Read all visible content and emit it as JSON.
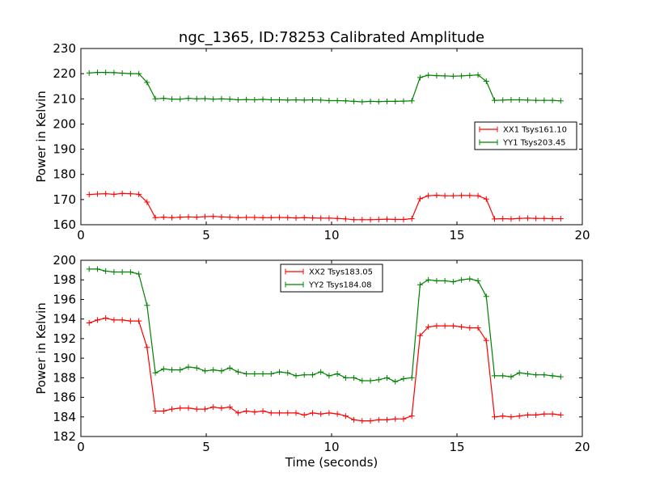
{
  "title": "ngc_1365, ID:78253 Calibrated Amplitude",
  "colors": {
    "series1": "#ff0000",
    "series2": "#008000",
    "axes": "#000000",
    "background": "#ffffff"
  },
  "chart_data": [
    {
      "type": "line",
      "title": "ngc_1365, ID:78253 Calibrated Amplitude",
      "xlabel": "",
      "ylabel": "Power in Kelvin",
      "xlim": [
        0,
        20
      ],
      "ylim": [
        160,
        230
      ],
      "xticks": [
        0,
        5,
        10,
        15,
        20
      ],
      "yticks": [
        160,
        170,
        180,
        190,
        200,
        210,
        220,
        230
      ],
      "grid": false,
      "legend": "right",
      "x": [
        0.33,
        0.66,
        0.99,
        1.32,
        1.65,
        1.98,
        2.31,
        2.64,
        2.97,
        3.3,
        3.63,
        3.96,
        4.29,
        4.62,
        4.95,
        5.28,
        5.61,
        5.94,
        6.27,
        6.6,
        6.93,
        7.26,
        7.59,
        7.92,
        8.25,
        8.58,
        8.91,
        9.24,
        9.57,
        9.9,
        10.23,
        10.56,
        10.89,
        11.22,
        11.55,
        11.88,
        12.21,
        12.54,
        12.87,
        13.2,
        13.53,
        13.86,
        14.19,
        14.52,
        14.85,
        15.18,
        15.51,
        15.84,
        16.17,
        16.5,
        16.83,
        17.16,
        17.49,
        17.82,
        18.15,
        18.48,
        18.81,
        19.14
      ],
      "series": [
        {
          "name": "XX1 Tsys161.10",
          "color": "#ff0000",
          "values": [
            172.0,
            172.2,
            172.3,
            172.1,
            172.4,
            172.3,
            172.1,
            169.0,
            162.8,
            163.0,
            162.8,
            163.0,
            163.1,
            163.0,
            163.2,
            163.3,
            163.1,
            163.0,
            162.8,
            162.9,
            162.9,
            162.8,
            162.8,
            162.9,
            162.8,
            162.7,
            162.8,
            162.7,
            162.6,
            162.6,
            162.5,
            162.3,
            162.0,
            162.0,
            162.0,
            162.1,
            162.2,
            162.1,
            162.1,
            162.4,
            170.3,
            171.5,
            171.7,
            171.5,
            171.5,
            171.6,
            171.6,
            171.5,
            170.2,
            162.3,
            162.4,
            162.3,
            162.5,
            162.6,
            162.5,
            162.5,
            162.4,
            162.4
          ]
        },
        {
          "name": "YY1 Tsys203.45",
          "color": "#008000",
          "values": [
            220.3,
            220.5,
            220.5,
            220.4,
            220.2,
            220.0,
            220.0,
            216.5,
            210.0,
            210.2,
            209.9,
            209.9,
            210.2,
            210.0,
            210.1,
            209.9,
            210.0,
            209.9,
            209.6,
            209.7,
            209.6,
            209.8,
            209.6,
            209.6,
            209.5,
            209.6,
            209.5,
            209.6,
            209.5,
            209.3,
            209.3,
            209.2,
            209.0,
            208.8,
            209.0,
            208.9,
            209.0,
            209.0,
            209.1,
            209.2,
            218.5,
            219.4,
            219.2,
            219.1,
            219.0,
            219.1,
            219.3,
            219.5,
            217.0,
            209.4,
            209.5,
            209.6,
            209.6,
            209.5,
            209.4,
            209.4,
            209.4,
            209.2
          ]
        }
      ]
    },
    {
      "type": "line",
      "title": "",
      "xlabel": "Time (seconds)",
      "ylabel": "Power in Kelvin",
      "xlim": [
        0,
        20
      ],
      "ylim": [
        182,
        200
      ],
      "xticks": [
        0,
        5,
        10,
        15,
        20
      ],
      "yticks": [
        182,
        184,
        186,
        188,
        190,
        192,
        194,
        196,
        198,
        200
      ],
      "grid": false,
      "legend": "top-center",
      "x": [
        0.33,
        0.66,
        0.99,
        1.32,
        1.65,
        1.98,
        2.31,
        2.64,
        2.97,
        3.3,
        3.63,
        3.96,
        4.29,
        4.62,
        4.95,
        5.28,
        5.61,
        5.94,
        6.27,
        6.6,
        6.93,
        7.26,
        7.59,
        7.92,
        8.25,
        8.58,
        8.91,
        9.24,
        9.57,
        9.9,
        10.23,
        10.56,
        10.89,
        11.22,
        11.55,
        11.88,
        12.21,
        12.54,
        12.87,
        13.2,
        13.53,
        13.86,
        14.19,
        14.52,
        14.85,
        15.18,
        15.51,
        15.84,
        16.17,
        16.5,
        16.83,
        17.16,
        17.49,
        17.82,
        18.15,
        18.48,
        18.81,
        19.14
      ],
      "series": [
        {
          "name": "XX2 Tsys183.05",
          "color": "#ff0000",
          "values": [
            193.6,
            193.9,
            194.1,
            193.9,
            193.9,
            193.8,
            193.8,
            191.1,
            184.6,
            184.6,
            184.8,
            184.9,
            184.9,
            184.8,
            184.8,
            185.0,
            184.9,
            185.0,
            184.4,
            184.6,
            184.5,
            184.6,
            184.4,
            184.4,
            184.4,
            184.4,
            184.2,
            184.4,
            184.3,
            184.4,
            184.3,
            184.1,
            183.7,
            183.6,
            183.6,
            183.7,
            183.7,
            183.8,
            183.8,
            184.1,
            192.3,
            193.2,
            193.3,
            193.3,
            193.3,
            193.2,
            193.1,
            193.1,
            191.8,
            184.0,
            184.1,
            184.0,
            184.1,
            184.2,
            184.2,
            184.3,
            184.3,
            184.2
          ]
        },
        {
          "name": "YY2 Tsys184.08",
          "color": "#008000",
          "values": [
            199.1,
            199.1,
            198.9,
            198.8,
            198.8,
            198.8,
            198.6,
            195.4,
            188.5,
            188.9,
            188.8,
            188.8,
            189.1,
            189.0,
            188.7,
            188.8,
            188.7,
            189.0,
            188.6,
            188.4,
            188.4,
            188.4,
            188.4,
            188.6,
            188.5,
            188.2,
            188.3,
            188.3,
            188.6,
            188.2,
            188.4,
            188.0,
            188.0,
            187.7,
            187.7,
            187.8,
            188.0,
            187.6,
            187.9,
            188.0,
            197.5,
            198.0,
            197.9,
            197.9,
            197.8,
            198.0,
            198.1,
            197.9,
            196.3,
            188.2,
            188.2,
            188.1,
            188.5,
            188.4,
            188.3,
            188.3,
            188.2,
            188.1
          ]
        }
      ]
    }
  ]
}
